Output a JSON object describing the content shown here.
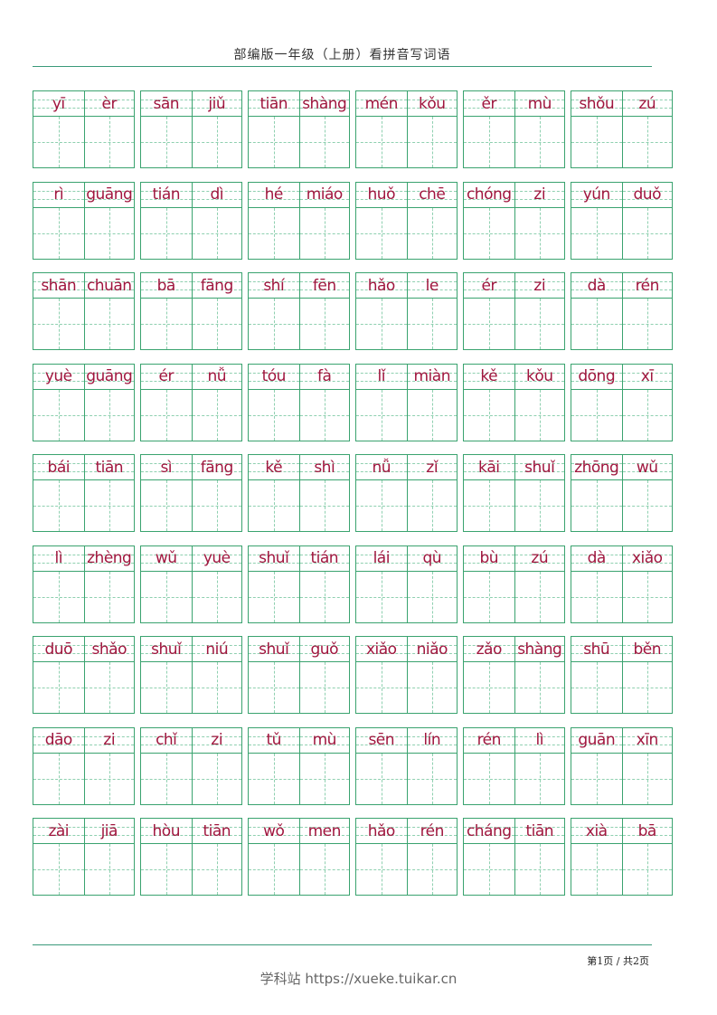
{
  "header": {
    "title": "部编版一年级（上册）看拼音写词语"
  },
  "colors": {
    "grid": "#3aa36f",
    "guide": "#8fd0b0",
    "pinyin": "#a0163e",
    "rule": "#3a9a7a"
  },
  "rows": [
    [
      [
        "yī",
        "èr"
      ],
      [
        "sān",
        "jiǔ"
      ],
      [
        "tiān",
        "shàng"
      ],
      [
        "mén",
        "kǒu"
      ],
      [
        "ěr",
        "mù"
      ],
      [
        "shǒu",
        "zú"
      ]
    ],
    [
      [
        "rì",
        "guāng"
      ],
      [
        "tián",
        "dì"
      ],
      [
        "hé",
        "miáo"
      ],
      [
        "huǒ",
        "chē"
      ],
      [
        "chóng",
        "zi"
      ],
      [
        "yún",
        "duǒ"
      ]
    ],
    [
      [
        "shān",
        "chuān"
      ],
      [
        "bā",
        "fāng"
      ],
      [
        "shí",
        "fēn"
      ],
      [
        "hǎo",
        "le"
      ],
      [
        "ér",
        "zi"
      ],
      [
        "dà",
        "rén"
      ]
    ],
    [
      [
        "yuè",
        "guāng"
      ],
      [
        "ér",
        "nǚ"
      ],
      [
        "tóu",
        "fà"
      ],
      [
        "lǐ",
        "miàn"
      ],
      [
        "kě",
        "kǒu"
      ],
      [
        "dōng",
        "xī"
      ]
    ],
    [
      [
        "bái",
        "tiān"
      ],
      [
        "sì",
        "fāng"
      ],
      [
        "kě",
        "shì"
      ],
      [
        "nǚ",
        "zǐ"
      ],
      [
        "kāi",
        "shuǐ"
      ],
      [
        "zhōng",
        "wǔ"
      ]
    ],
    [
      [
        "lì",
        "zhèng"
      ],
      [
        "wǔ",
        "yuè"
      ],
      [
        "shuǐ",
        "tián"
      ],
      [
        "lái",
        "qù"
      ],
      [
        "bù",
        "zú"
      ],
      [
        "dà",
        "xiǎo"
      ]
    ],
    [
      [
        "duō",
        "shǎo"
      ],
      [
        "shuǐ",
        "niú"
      ],
      [
        "shuǐ",
        "guǒ"
      ],
      [
        "xiǎo",
        "niǎo"
      ],
      [
        "zǎo",
        "shàng"
      ],
      [
        "shū",
        "běn"
      ]
    ],
    [
      [
        "dāo",
        "zi"
      ],
      [
        "chǐ",
        "zi"
      ],
      [
        "tǔ",
        "mù"
      ],
      [
        "sēn",
        "lín"
      ],
      [
        "rén",
        "lì"
      ],
      [
        "guān",
        "xīn"
      ]
    ],
    [
      [
        "zài",
        "jiā"
      ],
      [
        "hòu",
        "tiān"
      ],
      [
        "wǒ",
        "men"
      ],
      [
        "hǎo",
        "rén"
      ],
      [
        "cháng",
        "tiān"
      ],
      [
        "xià",
        "bā"
      ]
    ]
  ],
  "footer": {
    "page": "第1页  /  共2页",
    "site": "学科站 https://xueke.tuikar.cn"
  }
}
